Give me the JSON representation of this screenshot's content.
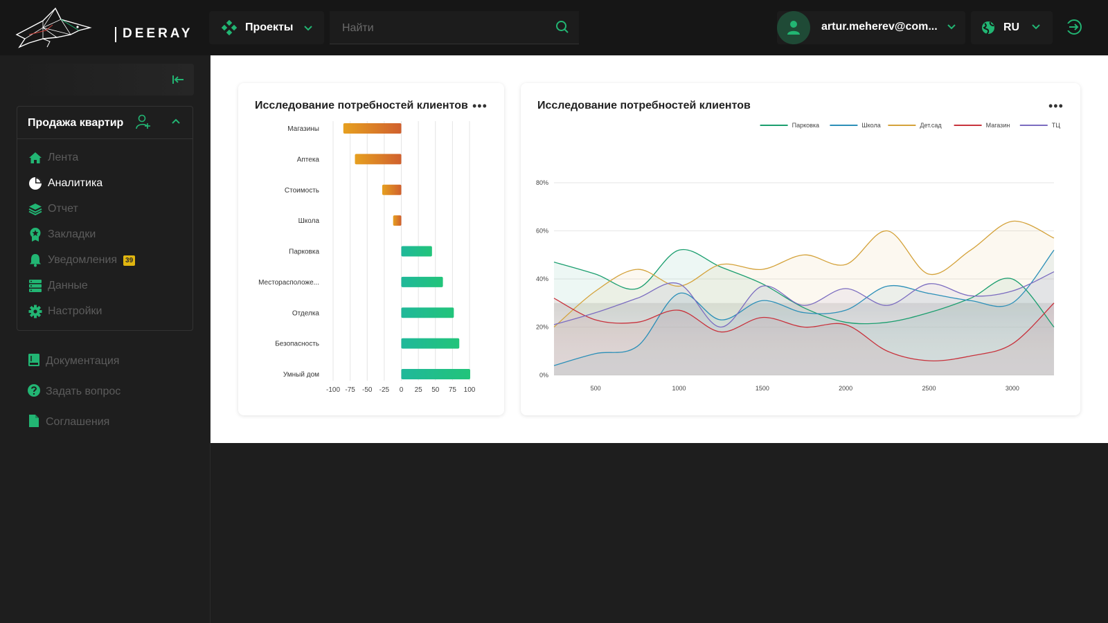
{
  "header": {
    "logo_text": "DEERAY",
    "projects_label": "Проекты",
    "search": {
      "placeholder": "Найти",
      "value": ""
    },
    "user_email": "artur.meherev@com...",
    "language": "RU",
    "icons": [
      "projects-icon",
      "chevron-down-icon",
      "search-icon",
      "user-icon",
      "globe-icon",
      "logout-icon"
    ]
  },
  "sidebar": {
    "section_title": "Продажа квартир",
    "items": [
      {
        "label": "Лента",
        "icon": "home-icon",
        "active": false
      },
      {
        "label": "Аналитика",
        "icon": "pie-chart-icon",
        "active": true
      },
      {
        "label": "Отчет",
        "icon": "layers-icon",
        "active": false
      },
      {
        "label": "Закладки",
        "icon": "bookmark-icon",
        "active": false
      },
      {
        "label": "Уведомления",
        "icon": "bell-icon",
        "active": false,
        "badge": "39"
      },
      {
        "label": "Данные",
        "icon": "database-icon",
        "active": false
      },
      {
        "label": "Настройки",
        "icon": "gear-icon",
        "active": false
      }
    ],
    "footer_items": [
      {
        "label": "Документация",
        "icon": "book-icon"
      },
      {
        "label": "Задать вопрос",
        "icon": "question-icon"
      },
      {
        "label": "Соглашения",
        "icon": "document-icon"
      }
    ]
  },
  "colors": {
    "accent": "#22b573",
    "sidebar_bg": "#1e1e1e",
    "header_bg": "#161616",
    "badge": "#e0b50f",
    "negative_gradient": [
      "#e6a020",
      "#d0602e"
    ],
    "positive_gradient": [
      "#20b89a",
      "#22c47a"
    ]
  },
  "chart_data": [
    {
      "type": "bar",
      "orientation": "horizontal",
      "title": "Исследование потребностей клиентов",
      "categories": [
        "Магазины",
        "Аптека",
        "Стоимость",
        "Школа",
        "Парковка",
        "Месторасположе...",
        "Отделка",
        "Безопасность",
        "Умный дом"
      ],
      "values": [
        -85,
        -68,
        -28,
        -12,
        45,
        61,
        77,
        85,
        101
      ],
      "xlim": [
        -100,
        100
      ],
      "xticks": [
        "-100",
        "-75",
        "-50",
        "-25",
        "0",
        "25",
        "50",
        "75",
        "100"
      ],
      "grid": true
    },
    {
      "type": "area",
      "title": "Исследование потребностей клиентов",
      "legend_position": "top-right",
      "x": [
        250,
        500,
        750,
        1000,
        1250,
        1500,
        1750,
        2000,
        2250,
        2500,
        2750,
        3000,
        3250
      ],
      "xticks": [
        "500",
        "1000",
        "1500",
        "2000",
        "2500",
        "3000"
      ],
      "xlim": [
        250,
        3250
      ],
      "ylim": [
        0,
        80
      ],
      "yticks": [
        "0%",
        "20%",
        "40%",
        "60%",
        "80%"
      ],
      "grid": true,
      "series": [
        {
          "name": "Парковка",
          "color": "#1a9e6e",
          "values": [
            47,
            42,
            36,
            52,
            45,
            38,
            28,
            22,
            22,
            26,
            32,
            40,
            20
          ]
        },
        {
          "name": "Школа",
          "color": "#2b8fb8",
          "values": [
            4,
            9,
            12,
            34,
            23,
            31,
            26,
            27,
            37,
            34,
            31,
            30,
            52
          ]
        },
        {
          "name": "Дет.сад",
          "color": "#d4a23a",
          "values": [
            20,
            35,
            44,
            37,
            46,
            44,
            50,
            46,
            60,
            42,
            52,
            64,
            57
          ]
        },
        {
          "name": "Магазин",
          "color": "#c8323c",
          "values": [
            32,
            23,
            22,
            27,
            18,
            24,
            20,
            21,
            10,
            6,
            8,
            13,
            30
          ]
        },
        {
          "name": "ТЦ",
          "color": "#7b6cc0",
          "values": [
            21,
            26,
            32,
            38,
            20,
            37,
            29,
            36,
            29,
            38,
            33,
            35,
            43
          ]
        }
      ]
    }
  ]
}
